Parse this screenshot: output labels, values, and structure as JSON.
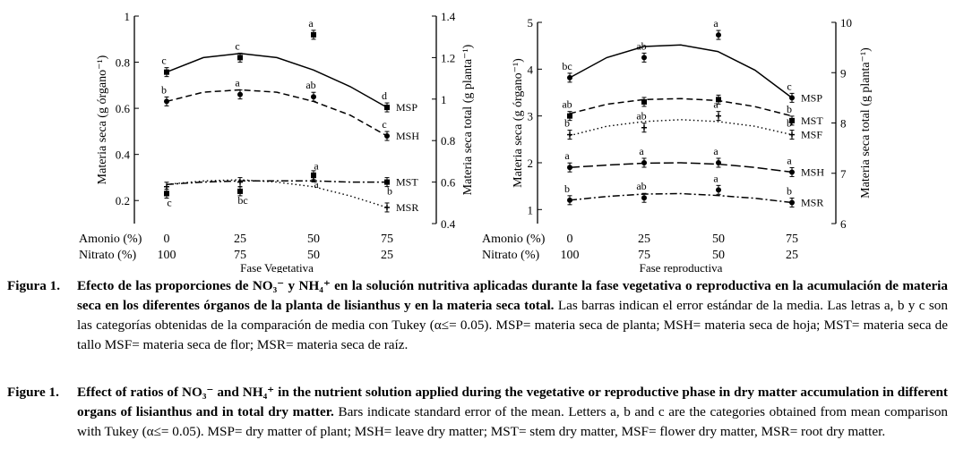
{
  "chart_data": [
    {
      "type": "line",
      "title": "Fase Vegetativa",
      "xlabel": "Fase Vegetativa",
      "amonio_label": "Amonio (%)",
      "nitrato_label": "Nitrato (%)",
      "amonio_ticks": [
        "0",
        "25",
        "50",
        "75"
      ],
      "nitrato_ticks": [
        "100",
        "75",
        "50",
        "25"
      ],
      "x": [
        0,
        25,
        50,
        75
      ],
      "ylabel_left": "Materia seca (g órgano⁻¹)",
      "ylabel_right": "Materia seca total (g planta⁻¹)",
      "ylim_left": [
        0.1,
        1.0
      ],
      "ylim_right": [
        0.4,
        1.4
      ],
      "yticks_left": [
        "0.2",
        "0.4",
        "0.6",
        "0.8",
        "1"
      ],
      "yticks_right": [
        "0.4",
        "0.6",
        "0.8",
        "1",
        "1.2",
        "1.4"
      ],
      "series": [
        {
          "name": "MSP",
          "axis": "right",
          "style": "solid",
          "marker": "square",
          "values": [
            1.13,
            1.2,
            1.31,
            0.96
          ],
          "letters": [
            "c",
            "c",
            "a",
            "d"
          ],
          "fit": [
            1.13,
            1.2,
            1.22,
            1.2,
            1.14,
            1.06,
            0.96
          ]
        },
        {
          "name": "MSH",
          "axis": "left",
          "style": "dash",
          "marker": "circle",
          "values": [
            0.63,
            0.66,
            0.65,
            0.48
          ],
          "letters": [
            "b",
            "a",
            "ab",
            "c"
          ],
          "fit": [
            0.63,
            0.67,
            0.68,
            0.67,
            0.63,
            0.57,
            0.48
          ]
        },
        {
          "name": "MST",
          "axis": "left",
          "style": "dashdot",
          "marker": "square",
          "values": [
            0.23,
            0.24,
            0.31,
            0.28
          ],
          "letters": [
            "c",
            "bc",
            "a",
            "b"
          ],
          "fit": [
            0.27,
            0.28,
            0.285,
            0.285,
            0.285,
            0.28,
            0.28
          ]
        },
        {
          "name": "MSR",
          "axis": "left",
          "style": "dot",
          "marker": "cross",
          "values": [
            0.26,
            0.28,
            0.3,
            0.17
          ],
          "letters": [
            "",
            "",
            "a",
            ""
          ],
          "fit": [
            0.27,
            0.285,
            0.29,
            0.28,
            0.26,
            0.22,
            0.17
          ]
        }
      ]
    },
    {
      "type": "line",
      "title": "Fase reproductiva",
      "xlabel": "Fase reproductiva",
      "amonio_label": "Amonio (%)",
      "nitrato_label": "Nitrato (%)",
      "amonio_ticks": [
        "0",
        "25",
        "50",
        "75"
      ],
      "nitrato_ticks": [
        "100",
        "75",
        "50",
        "25"
      ],
      "x": [
        0,
        25,
        50,
        75
      ],
      "ylabel_left": "Materia seca (g órgano⁻¹)",
      "ylabel_right": "Materia seca total (g planta⁻¹)",
      "ylim_left": [
        0.7,
        5.0
      ],
      "ylim_right": [
        6,
        10
      ],
      "yticks_left": [
        "1",
        "2",
        "3",
        "4",
        "5"
      ],
      "yticks_right": [
        "6",
        "7",
        "8",
        "9",
        "10"
      ],
      "series": [
        {
          "name": "MSP",
          "axis": "right",
          "style": "solid",
          "marker": "circle",
          "values": [
            8.9,
            9.3,
            9.75,
            8.5
          ],
          "letters": [
            "bc",
            "ab",
            "a",
            "c"
          ],
          "fit": [
            8.9,
            9.3,
            9.52,
            9.55,
            9.42,
            9.05,
            8.5
          ]
        },
        {
          "name": "MST",
          "axis": "left",
          "style": "dash",
          "marker": "square",
          "values": [
            3.0,
            3.3,
            3.35,
            2.9
          ],
          "letters": [
            "ab",
            "",
            "",
            "b"
          ],
          "fit": [
            3.05,
            3.25,
            3.35,
            3.37,
            3.33,
            3.2,
            3.0
          ]
        },
        {
          "name": "MSF",
          "axis": "left",
          "style": "dot",
          "marker": "cross",
          "values": [
            2.6,
            2.75,
            3.0,
            2.6
          ],
          "letters": [
            "b",
            "ab",
            "a",
            "b"
          ],
          "fit": [
            2.58,
            2.78,
            2.88,
            2.92,
            2.88,
            2.78,
            2.6
          ]
        },
        {
          "name": "MSH",
          "axis": "left",
          "style": "longdash",
          "marker": "circle",
          "values": [
            1.9,
            2.0,
            2.0,
            1.8
          ],
          "letters": [
            "a",
            "a",
            "a",
            "a"
          ],
          "fit": [
            1.9,
            1.95,
            1.99,
            2.0,
            1.97,
            1.9,
            1.8
          ]
        },
        {
          "name": "MSR",
          "axis": "left",
          "style": "dashdot",
          "marker": "circle",
          "values": [
            1.2,
            1.25,
            1.42,
            1.15
          ],
          "letters": [
            "b",
            "ab",
            "a",
            "b"
          ],
          "fit": [
            1.2,
            1.28,
            1.33,
            1.34,
            1.3,
            1.24,
            1.15
          ]
        }
      ]
    }
  ],
  "caption_es": {
    "label": "Figura 1.",
    "bold": "Efecto de las proporciones de NO₃⁻ y NH₄⁺ en la solución nutritiva aplicadas durante la fase vegetativa o reproductiva en la acumulación de materia seca en los diferentes órganos de la planta de lisianthus y en la materia seca total.",
    "rest": "Las barras indican el error estándar de la media. Las letras a, b y c son las categorías obtenidas de la comparación de media con Tukey (α≤= 0.05). MSP= materia seca de planta; MSH= materia seca de hoja; MST= materia seca de tallo MSF= materia seca de flor; MSR= materia seca de raíz."
  },
  "caption_en": {
    "label": "Figure 1.",
    "bold": "Effect of ratios of NO₃⁻ and NH₄⁺ in the nutrient solution applied during the vegetative or reproductive phase in dry matter accumulation in different organs of lisianthus and in total dry matter.",
    "rest": "Bars indicate standard error of the mean. Letters a, b and c are the categories obtained from mean comparison with Tukey (α≤= 0.05). MSP= dry matter of plant; MSH= leave dry matter; MST= stem dry matter, MSF= flower dry matter, MSR= root dry matter."
  }
}
